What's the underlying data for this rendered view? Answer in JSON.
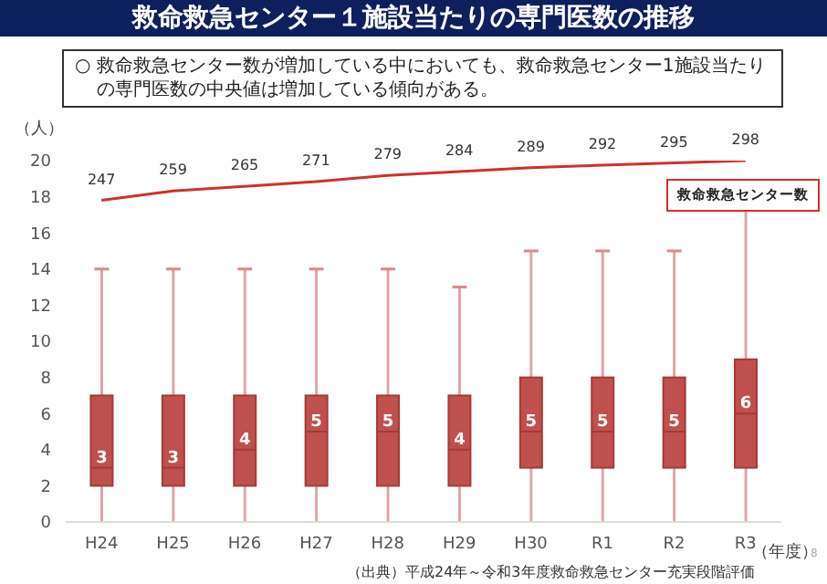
{
  "chart_data": {
    "type": "box",
    "title": "救命救急センター１施設当たりの専門医数の推移",
    "subtitle": "○  救命救急センター数が増加している中においても、救命救急センター1施設当たりの専門医数の中央値は増加している傾向がある。",
    "ylabel": "（人）",
    "xlabel": "（年度）",
    "categories": [
      "H24",
      "H25",
      "H26",
      "H27",
      "H28",
      "H29",
      "H30",
      "R1",
      "R2",
      "R3"
    ],
    "ylim": [
      0,
      20
    ],
    "yticks": [
      0,
      2,
      4,
      6,
      8,
      10,
      12,
      14,
      16,
      18,
      20
    ],
    "tick_labels": "xy",
    "series": [
      {
        "color": "#c0504d",
        "value_labels": [
          "3",
          "3",
          "4",
          "5",
          "5",
          "4",
          "5",
          "5",
          "5",
          "6"
        ],
        "boxes": [
          {
            "low": 0,
            "q1": 2,
            "median": 3,
            "q3": 7,
            "high": 14
          },
          {
            "low": 0,
            "q1": 2,
            "median": 3,
            "q3": 7,
            "high": 14
          },
          {
            "low": 0,
            "q1": 2,
            "median": 4,
            "q3": 7,
            "high": 14
          },
          {
            "low": 0,
            "q1": 2,
            "median": 5,
            "q3": 7,
            "high": 14
          },
          {
            "low": 0,
            "q1": 2,
            "median": 5,
            "q3": 7,
            "high": 14
          },
          {
            "low": 0,
            "q1": 2,
            "median": 4,
            "q3": 7,
            "high": 13
          },
          {
            "low": 0,
            "q1": 3,
            "median": 5,
            "q3": 8,
            "high": 15
          },
          {
            "low": 0,
            "q1": 3,
            "median": 5,
            "q3": 8,
            "high": 15
          },
          {
            "low": 0,
            "q1": 3,
            "median": 5,
            "q3": 8,
            "high": 15
          },
          {
            "low": 0,
            "q1": 3,
            "median": 6,
            "q3": 9,
            "high": 18
          }
        ]
      },
      {
        "type": "line",
        "name": "救命救急センター数",
        "color": "#d0312d",
        "axis": "y2",
        "values": [
          247,
          259,
          265,
          271,
          279,
          284,
          289,
          292,
          295,
          298
        ],
        "value_labels": [
          "247",
          "259",
          "265",
          "271",
          "279",
          "284",
          "289",
          "292",
          "295",
          "298"
        ]
      }
    ],
    "annotations": [
      "（出典）平成24年～令和3年度救命救急センター充実段階評価",
      "8"
    ]
  }
}
